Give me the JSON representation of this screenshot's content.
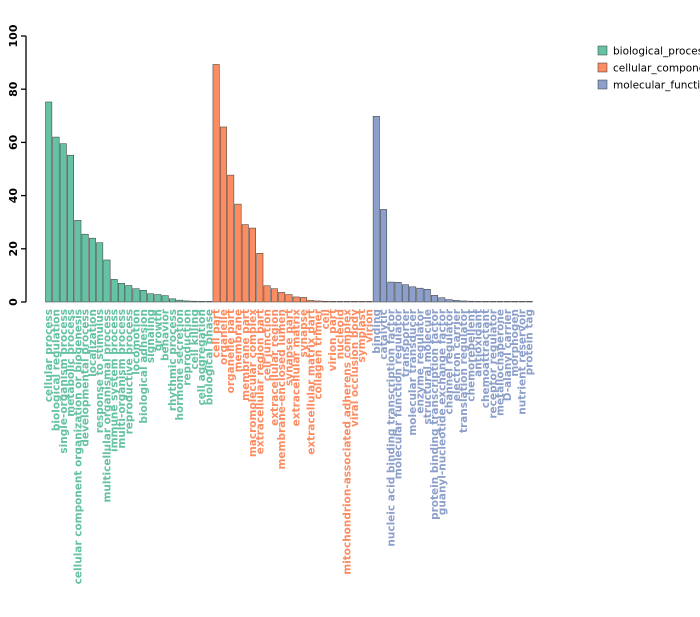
{
  "chart_data": {
    "type": "bar",
    "title": "",
    "xlabel": "",
    "ylabel": "",
    "ylim": [
      0,
      100
    ],
    "yticks": [
      0,
      20,
      40,
      60,
      80,
      100
    ],
    "grid": false,
    "legend_position": "top-right",
    "colors": {
      "biological_process": "#66c2a5",
      "cellular_component": "#fc8d62",
      "molecular_function": "#8da0cb"
    },
    "series": [
      {
        "name": "biological_process",
        "color": "#66c2a5",
        "categories": [
          "cellular process",
          "biological regulation",
          "single-organism process",
          "metabolic process",
          "cellular component organization or biogenesis",
          "developmental process",
          "localization",
          "response to stimulus",
          "multicellular organismal process",
          "immune system process",
          "multi-organism process",
          "reproductive process",
          "locomotion",
          "biological adhesion",
          "signaling",
          "growth",
          "behavior",
          "rhythmic process",
          "hormone secretion",
          "reproduction",
          "cell killing",
          "cell aggregation",
          "biological phase"
        ],
        "values": [
          75.2,
          62.0,
          59.5,
          55.2,
          30.7,
          25.5,
          24.0,
          22.3,
          15.8,
          8.5,
          7.0,
          6.2,
          5.0,
          4.4,
          3.1,
          2.8,
          2.4,
          1.2,
          0.7,
          0.4,
          0.3,
          0.2,
          0.1
        ]
      },
      {
        "name": "cellular_component",
        "color": "#fc8d62",
        "categories": [
          "cell part",
          "organelle",
          "organelle part",
          "membrane",
          "membrane part",
          "macromolecular complex",
          "extracellular region part",
          "cell junction",
          "extracellular region",
          "membrane-enclosed lumen",
          "synapse part",
          "extracellular matrix",
          "synapse",
          "extracellular matrix part",
          "collagen trimer",
          "cell",
          "virion part",
          "nucleoid",
          "mitochondrion-associated adherens complex",
          "viral occlusion body",
          "symplast",
          "virion"
        ],
        "values": [
          89.3,
          65.8,
          47.7,
          36.8,
          29.1,
          27.8,
          18.3,
          6.1,
          5.0,
          3.6,
          2.8,
          1.9,
          1.7,
          0.6,
          0.4,
          0.3,
          0.2,
          0.2,
          0.1,
          0.1,
          0.1,
          0.1
        ]
      },
      {
        "name": "molecular_function",
        "color": "#8da0cb",
        "categories": [
          "binding",
          "catalytic",
          "nucleic acid binding transcription factor",
          "molecular function regulator",
          "transporter",
          "molecular transducer",
          "enzyme regulator",
          "structural molecule",
          "protein binding transcription factor",
          "guanyl-nucleotide exchange factor",
          "channel regulator",
          "electron carrier",
          "translation regulator",
          "chemorepellent",
          "antioxidant",
          "chemoattractant",
          "receptor regulator",
          "metallochaperone",
          "D-alanyl carrier",
          "morphogen",
          "nutrient reservoir",
          "protein tag"
        ],
        "values": [
          69.8,
          34.8,
          7.5,
          7.4,
          6.5,
          5.7,
          5.2,
          4.8,
          2.5,
          1.6,
          0.9,
          0.6,
          0.4,
          0.3,
          0.2,
          0.2,
          0.1,
          0.1,
          0.1,
          0.1,
          0.1,
          0.1
        ]
      }
    ]
  }
}
